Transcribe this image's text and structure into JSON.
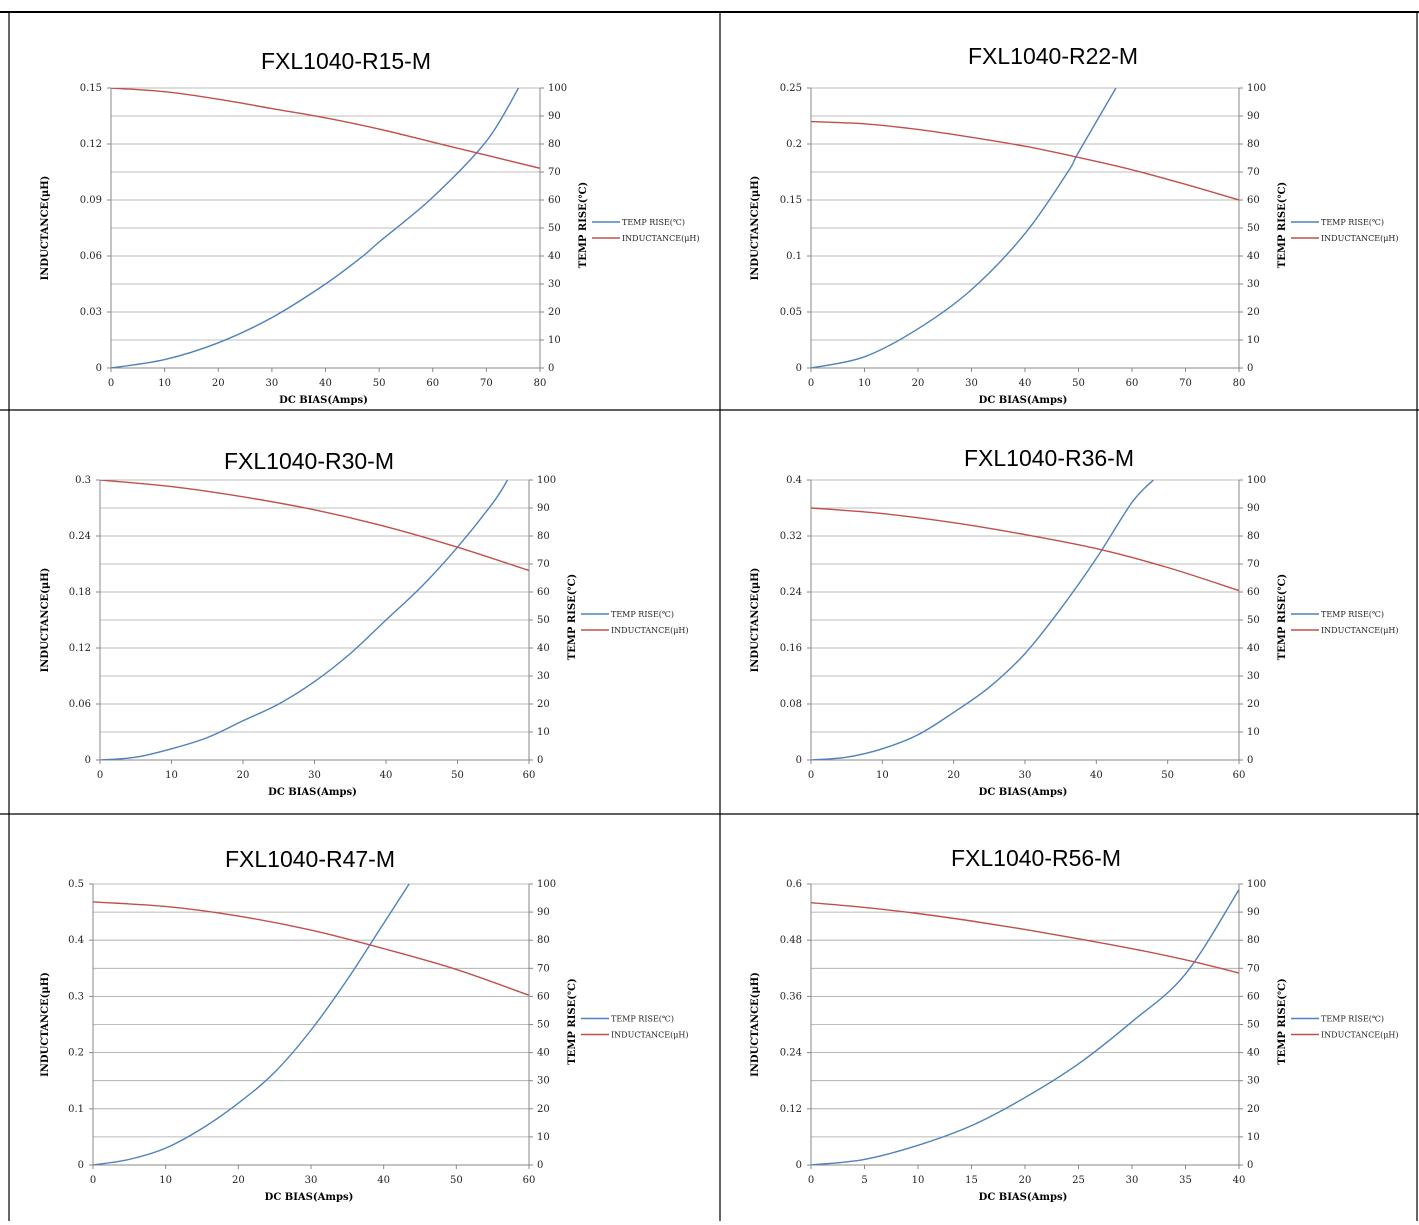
{
  "colors": {
    "temp_rise": "#4f81bd",
    "inductance": "#c0504d",
    "grid": "#a6a6a6",
    "border": "#000000"
  },
  "legend": {
    "temp_rise": "TEMP RISE(℃)",
    "inductance": "INDUCTANCE(μH)"
  },
  "axis_labels": {
    "xlabel": "DC BIAS(Amps)",
    "ylabel_left": "INDUCTANCE(μH)",
    "ylabel_right": "TEMP RISE(℃)"
  },
  "chart_data": [
    {
      "type": "line",
      "title": "FXL1040-R15-M",
      "xlabel": "DC BIAS(Amps)",
      "ylabel": "INDUCTANCE(μH)",
      "y2label": "TEMP RISE(℃)",
      "xlim": [
        0,
        80
      ],
      "xticks": [
        "0",
        "10",
        "20",
        "30",
        "40",
        "50",
        "60",
        "70",
        "80"
      ],
      "ylim": [
        0,
        0.15
      ],
      "yticks": [
        "0",
        "0.03",
        "0.06",
        "0.09",
        "0.12",
        "0.15"
      ],
      "y2lim": [
        0,
        100
      ],
      "y2ticks": [
        "0",
        "10",
        "20",
        "30",
        "40",
        "50",
        "60",
        "70",
        "80",
        "90",
        "100"
      ],
      "grid": true,
      "legend_position": "right",
      "series": [
        {
          "name": "TEMP RISE(℃)",
          "axis": "right",
          "x": [
            0,
            10,
            20,
            30,
            40,
            47,
            50,
            60,
            70,
            76
          ],
          "y": [
            0,
            3,
            9,
            18,
            30,
            40,
            45,
            61,
            81,
            100
          ]
        },
        {
          "name": "INDUCTANCE(μH)",
          "axis": "left",
          "x": [
            0,
            10,
            20,
            30,
            40,
            50,
            60,
            70,
            80
          ],
          "y": [
            0.15,
            0.148,
            0.144,
            0.139,
            0.134,
            0.128,
            0.121,
            0.114,
            0.107
          ]
        }
      ]
    },
    {
      "type": "line",
      "title": "FXL1040-R22-M",
      "xlabel": "DC BIAS(Amps)",
      "ylabel": "INDUCTANCE(μH)",
      "y2label": "TEMP RISE(℃)",
      "xlim": [
        0,
        80
      ],
      "xticks": [
        "0",
        "10",
        "20",
        "30",
        "40",
        "50",
        "60",
        "70",
        "80"
      ],
      "ylim": [
        0,
        0.25
      ],
      "yticks": [
        "0",
        "0.05",
        "0.1",
        "0.15",
        "0.2",
        "0.25"
      ],
      "y2lim": [
        0,
        100
      ],
      "y2ticks": [
        "0",
        "10",
        "20",
        "30",
        "40",
        "50",
        "60",
        "70",
        "80",
        "90",
        "100"
      ],
      "grid": true,
      "legend_position": "right",
      "series": [
        {
          "name": "TEMP RISE(℃)",
          "axis": "right",
          "x": [
            0,
            10,
            20,
            30,
            40,
            48,
            50,
            57
          ],
          "y": [
            0,
            4,
            14,
            28,
            48,
            70,
            77,
            100
          ]
        },
        {
          "name": "INDUCTANCE(μH)",
          "axis": "left",
          "x": [
            0,
            10,
            20,
            30,
            40,
            50,
            60,
            70,
            80
          ],
          "y": [
            0.22,
            0.218,
            0.213,
            0.206,
            0.198,
            0.188,
            0.177,
            0.164,
            0.15
          ]
        }
      ]
    },
    {
      "type": "line",
      "title": "FXL1040-R30-M",
      "xlabel": "DC BIAS(Amps)",
      "ylabel": "INDUCTANCE(μH)",
      "y2label": "TEMP RISE(℃)",
      "xlim": [
        0,
        60
      ],
      "xticks": [
        "0",
        "10",
        "20",
        "30",
        "40",
        "50",
        "60"
      ],
      "ylim": [
        0,
        0.3
      ],
      "yticks": [
        "0",
        "0.06",
        "0.12",
        "0.18",
        "0.24",
        "0.3"
      ],
      "y2lim": [
        0,
        100
      ],
      "y2ticks": [
        "0",
        "10",
        "20",
        "30",
        "40",
        "50",
        "60",
        "70",
        "80",
        "90",
        "100"
      ],
      "grid": true,
      "legend_position": "right",
      "series": [
        {
          "name": "TEMP RISE(℃)",
          "axis": "right",
          "x": [
            0,
            5,
            10,
            15,
            20,
            25,
            30,
            35,
            40,
            45,
            50,
            55,
            57
          ],
          "y": [
            0,
            1,
            4,
            8,
            14,
            20,
            28,
            38,
            50,
            62,
            76,
            92,
            100
          ]
        },
        {
          "name": "INDUCTANCE(μH)",
          "axis": "left",
          "x": [
            0,
            10,
            20,
            30,
            40,
            50,
            60
          ],
          "y": [
            0.3,
            0.293,
            0.282,
            0.268,
            0.25,
            0.228,
            0.203
          ]
        }
      ]
    },
    {
      "type": "line",
      "title": "FXL1040-R36-M",
      "xlabel": "DC BIAS(Amps)",
      "ylabel": "INDUCTANCE(μH)",
      "y2label": "TEMP RISE(℃)",
      "xlim": [
        0,
        60
      ],
      "xticks": [
        "0",
        "10",
        "20",
        "30",
        "40",
        "50",
        "60"
      ],
      "ylim": [
        0,
        0.4
      ],
      "yticks": [
        "0",
        "0.08",
        "0.16",
        "0.24",
        "0.32",
        "0.4"
      ],
      "y2lim": [
        0,
        100
      ],
      "y2ticks": [
        "0",
        "10",
        "20",
        "30",
        "40",
        "50",
        "60",
        "70",
        "80",
        "90",
        "100"
      ],
      "grid": true,
      "legend_position": "right",
      "series": [
        {
          "name": "TEMP RISE(℃)",
          "axis": "right",
          "x": [
            0,
            5,
            10,
            15,
            20,
            25,
            30,
            35,
            40,
            45,
            48
          ],
          "y": [
            0,
            1,
            4,
            9,
            17,
            26,
            38,
            54,
            72,
            92,
            100
          ]
        },
        {
          "name": "INDUCTANCE(μH)",
          "axis": "left",
          "x": [
            0,
            10,
            20,
            30,
            40,
            50,
            60
          ],
          "y": [
            0.36,
            0.352,
            0.339,
            0.322,
            0.302,
            0.275,
            0.242
          ]
        }
      ]
    },
    {
      "type": "line",
      "title": "FXL1040-R47-M",
      "xlabel": "DC BIAS(Amps)",
      "ylabel": "INDUCTANCE(μH)",
      "y2label": "TEMP RISE(℃)",
      "xlim": [
        0,
        60
      ],
      "xticks": [
        "0",
        "10",
        "20",
        "30",
        "40",
        "50",
        "60"
      ],
      "ylim": [
        0,
        0.5
      ],
      "yticks": [
        "0",
        "0.1",
        "0.2",
        "0.3",
        "0.4",
        "0.5"
      ],
      "y2lim": [
        0,
        100
      ],
      "y2ticks": [
        "0",
        "10",
        "20",
        "30",
        "40",
        "50",
        "60",
        "70",
        "80",
        "90",
        "100"
      ],
      "grid": true,
      "legend_position": "right",
      "series": [
        {
          "name": "TEMP RISE(℃)",
          "axis": "right",
          "x": [
            0,
            5,
            10,
            15,
            20,
            25,
            30,
            35,
            40,
            43.5
          ],
          "y": [
            0,
            2,
            6,
            13,
            22,
            33,
            48,
            66,
            86,
            100
          ]
        },
        {
          "name": "INDUCTANCE(μH)",
          "axis": "left",
          "x": [
            0,
            10,
            20,
            30,
            40,
            50,
            60
          ],
          "y": [
            0.468,
            0.46,
            0.443,
            0.418,
            0.385,
            0.348,
            0.302
          ]
        }
      ]
    },
    {
      "type": "line",
      "title": "FXL1040-R56-M",
      "xlabel": "DC BIAS(Amps)",
      "ylabel": "INDUCTANCE(μH)",
      "y2label": "TEMP RISE(℃)",
      "xlim": [
        0,
        40
      ],
      "xticks": [
        "0",
        "5",
        "10",
        "15",
        "20",
        "25",
        "30",
        "35",
        "40"
      ],
      "ylim": [
        0,
        0.6
      ],
      "yticks": [
        "0",
        "0.12",
        "0.24",
        "0.36",
        "0.48",
        "0.6"
      ],
      "y2lim": [
        0,
        100
      ],
      "y2ticks": [
        "0",
        "10",
        "20",
        "30",
        "40",
        "50",
        "60",
        "70",
        "80",
        "90",
        "100"
      ],
      "grid": true,
      "legend_position": "right",
      "series": [
        {
          "name": "TEMP RISE(℃)",
          "axis": "right",
          "x": [
            0,
            5,
            10,
            15,
            20,
            25,
            30,
            35,
            40
          ],
          "y": [
            0,
            2,
            7,
            14,
            24,
            36,
            51,
            68,
            98
          ]
        },
        {
          "name": "INDUCTANCE(μH)",
          "axis": "left",
          "x": [
            0,
            5,
            10,
            15,
            20,
            25,
            30,
            35,
            40
          ],
          "y": [
            0.56,
            0.55,
            0.537,
            0.521,
            0.503,
            0.483,
            0.462,
            0.438,
            0.41
          ]
        }
      ]
    }
  ]
}
